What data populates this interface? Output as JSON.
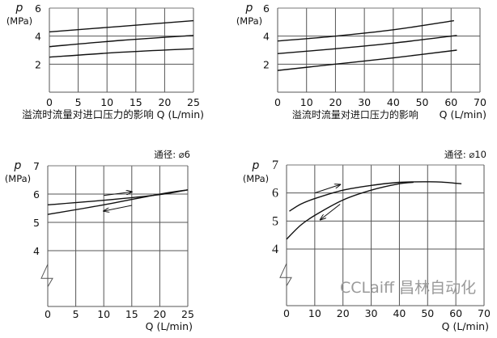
{
  "chart_data": [
    {
      "type": "line",
      "ylabel_symbol": "p",
      "ylabel_unit": "(MPa)",
      "xlabel": "溢流时流量对进口压力的影响 Q (L/min)",
      "xlim": [
        0,
        25
      ],
      "ylim": [
        0,
        6
      ],
      "xticks": [
        0,
        5,
        10,
        15,
        20,
        25
      ],
      "yticks": [
        2,
        4,
        6
      ],
      "grid": true,
      "series": [
        {
          "x": [
            0,
            12.5,
            25
          ],
          "y": [
            4.3,
            4.7,
            5.1
          ]
        },
        {
          "x": [
            0,
            12.5,
            25
          ],
          "y": [
            3.25,
            3.7,
            4.05
          ]
        },
        {
          "x": [
            0,
            12.5,
            25
          ],
          "y": [
            2.5,
            2.85,
            3.1
          ]
        }
      ]
    },
    {
      "type": "line",
      "ylabel_symbol": "p",
      "ylabel_unit": "(MPa)",
      "caption": "溢流时流量对进口压力的影响",
      "xlabel": "Q (L/min)",
      "xlim": [
        0,
        70
      ],
      "ylim": [
        0,
        6
      ],
      "xticks": [
        0,
        10,
        20,
        30,
        40,
        50,
        60,
        70
      ],
      "yticks": [
        2,
        4,
        6
      ],
      "grid": true,
      "series": [
        {
          "x": [
            0,
            20,
            40,
            61
          ],
          "y": [
            3.65,
            4.0,
            4.45,
            5.1
          ]
        },
        {
          "x": [
            0,
            20,
            40,
            62
          ],
          "y": [
            2.75,
            3.1,
            3.5,
            4.05
          ]
        },
        {
          "x": [
            0,
            20,
            40,
            62
          ],
          "y": [
            1.55,
            2.0,
            2.45,
            3.0
          ]
        }
      ]
    },
    {
      "type": "line",
      "title": "通径: ⌀6",
      "ylabel_symbol": "p",
      "ylabel_unit": "(MPa)",
      "xlabel": "Q (L/min)",
      "xlim": [
        0,
        25
      ],
      "ylim": [
        3,
        7
      ],
      "axis_break": true,
      "xticks": [
        0,
        5,
        10,
        15,
        20,
        25
      ],
      "yticks": [
        4,
        5,
        6,
        7
      ],
      "grid": true,
      "series": [
        {
          "x": [
            0,
            10,
            20,
            25
          ],
          "y": [
            5.62,
            5.78,
            5.98,
            6.15
          ]
        },
        {
          "x": [
            0,
            10,
            20,
            25
          ],
          "y": [
            5.28,
            5.62,
            6.0,
            6.15
          ]
        }
      ],
      "arrows": [
        {
          "direction": "increasing",
          "from": [
            10,
            5.95
          ],
          "to": [
            15,
            6.08
          ]
        },
        {
          "direction": "decreasing",
          "from": [
            15,
            5.6
          ],
          "to": [
            10,
            5.4
          ]
        }
      ]
    },
    {
      "type": "line",
      "title": "通径: ⌀10",
      "ylabel_symbol": "p",
      "ylabel_unit": "(MPa)",
      "xlabel": "Q (L/min)",
      "xlim": [
        0,
        70
      ],
      "ylim": [
        3,
        7
      ],
      "axis_break": true,
      "xticks": [
        0,
        10,
        20,
        30,
        40,
        50,
        60,
        70
      ],
      "yticks": [
        4,
        5,
        6,
        7
      ],
      "grid": true,
      "series": [
        {
          "x": [
            1,
            5,
            10,
            20,
            30,
            40,
            50,
            55,
            62
          ],
          "y": [
            5.35,
            5.6,
            5.8,
            6.1,
            6.27,
            6.38,
            6.4,
            6.39,
            6.33
          ]
        },
        {
          "x": [
            0,
            5,
            10,
            20,
            30,
            40,
            45
          ],
          "y": [
            4.35,
            4.85,
            5.2,
            5.75,
            6.1,
            6.33,
            6.38
          ]
        }
      ],
      "arrows": [
        {
          "direction": "increasing",
          "from": [
            10,
            6.0
          ],
          "to": [
            19,
            6.3
          ]
        },
        {
          "direction": "decreasing",
          "from": [
            19,
            5.6
          ],
          "to": [
            12,
            5.05
          ]
        }
      ]
    }
  ],
  "watermark": "CCLaiff 昌林自动化"
}
